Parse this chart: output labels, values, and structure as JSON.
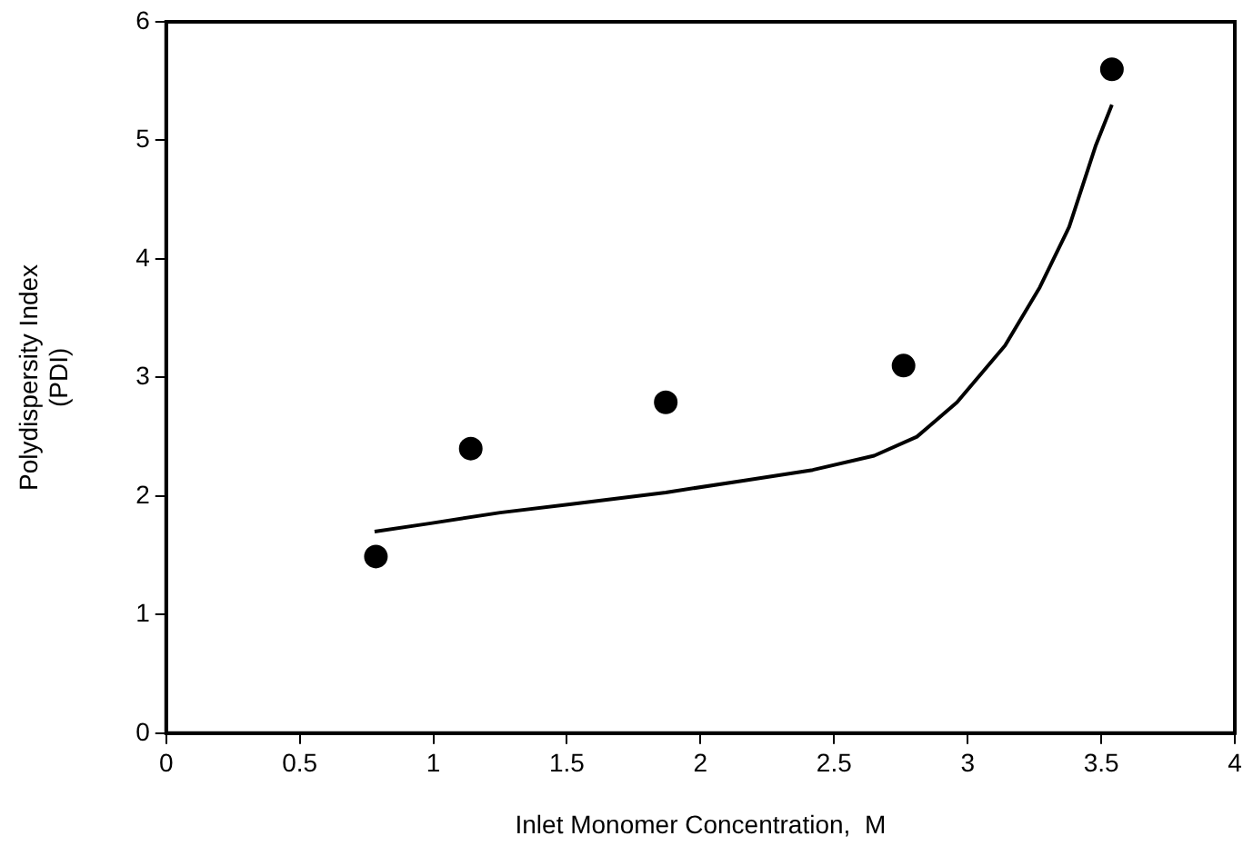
{
  "chart_data": {
    "type": "scatter",
    "xlabel": "Inlet Monomer Concentration,  M",
    "ylabel": "Polydispersity Index\n(PDI)",
    "xlim": [
      0,
      4
    ],
    "xticks": [
      0,
      0.5,
      1,
      1.5,
      2,
      2.5,
      3,
      3.5,
      4
    ],
    "ylim": [
      0,
      6
    ],
    "yticks": [
      0,
      1,
      2,
      3,
      4,
      5,
      6
    ],
    "grid": false,
    "legend": false,
    "series": [
      {
        "type": "scatter",
        "color": "#000000",
        "marker": "circle",
        "x": [
          0.785,
          1.14,
          1.87,
          2.76,
          3.54
        ],
        "values": [
          1.49,
          2.4,
          2.79,
          3.1,
          5.6
        ]
      },
      {
        "type": "line",
        "color": "#000000",
        "marker": "none",
        "line_style": "solid",
        "x": [
          0.78,
          0.99,
          1.25,
          1.51,
          1.87,
          2.16,
          2.42,
          2.65,
          2.81,
          2.96,
          3.14,
          3.27,
          3.38,
          3.48,
          3.54
        ],
        "values": [
          1.7,
          1.77,
          1.86,
          1.93,
          2.03,
          2.13,
          2.22,
          2.34,
          2.5,
          2.79,
          3.27,
          3.76,
          4.27,
          4.96,
          5.3
        ]
      }
    ]
  }
}
